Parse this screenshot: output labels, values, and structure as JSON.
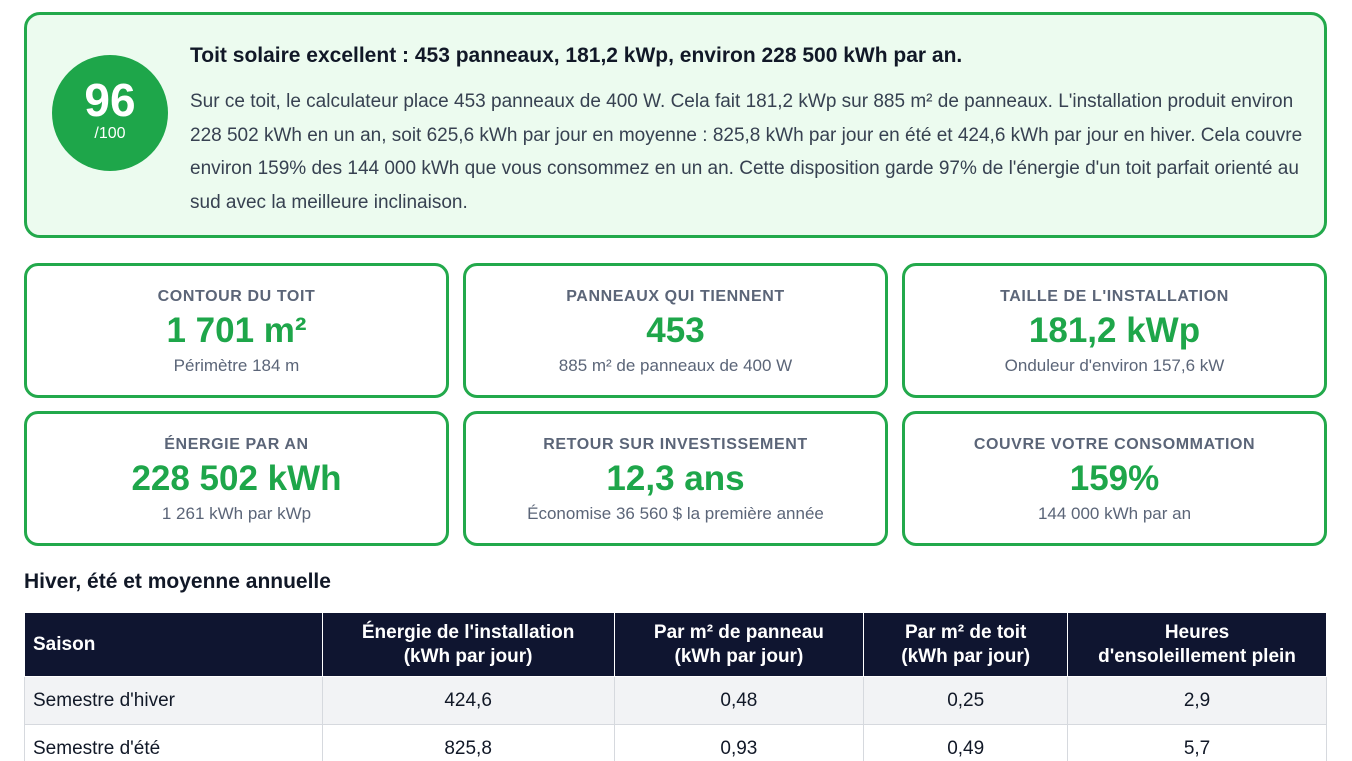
{
  "summary": {
    "score": "96",
    "score_max": "/100",
    "headline": "Toit solaire excellent : 453 panneaux, 181,2 kWp, environ 228 500 kWh par an.",
    "description": "Sur ce toit, le calculateur place 453 panneaux de 400 W. Cela fait 181,2 kWp sur 885 m² de panneaux. L'installation produit environ 228 502 kWh en un an, soit 625,6 kWh par jour en moyenne : 825,8 kWh par jour en été et 424,6 kWh par jour en hiver. Cela couvre environ 159% des 144 000 kWh que vous consommez en un an. Cette disposition garde 97% de l'énergie d'un toit parfait orienté au sud avec la meilleure inclinaison."
  },
  "cards": [
    {
      "label": "CONTOUR DU TOIT",
      "value": "1 701 m²",
      "sub": "Périmètre 184 m"
    },
    {
      "label": "PANNEAUX QUI TIENNENT",
      "value": "453",
      "sub": "885 m² de panneaux de 400 W"
    },
    {
      "label": "TAILLE DE L'INSTALLATION",
      "value": "181,2 kWp",
      "sub": "Onduleur d'environ 157,6 kW"
    },
    {
      "label": "ÉNERGIE PAR AN",
      "value": "228 502 kWh",
      "sub": "1 261 kWh par kWp"
    },
    {
      "label": "RETOUR SUR INVESTISSEMENT",
      "value": "12,3 ans",
      "sub": "Économise 36 560 $ la première année"
    },
    {
      "label": "COUVRE VOTRE CONSOMMATION",
      "value": "159%",
      "sub": "144 000 kWh par an"
    }
  ],
  "season_table": {
    "title": "Hiver, été et moyenne annuelle",
    "headers": [
      [
        "Saison"
      ],
      [
        "Énergie de l'installation",
        "(kWh par jour)"
      ],
      [
        "Par m² de panneau",
        "(kWh par jour)"
      ],
      [
        "Par m² de toit",
        "(kWh par jour)"
      ],
      [
        "Heures",
        "d'ensoleillement plein"
      ]
    ],
    "rows": [
      [
        "Semestre d'hiver",
        "424,6",
        "0,48",
        "0,25",
        "2,9"
      ],
      [
        "Semestre d'été",
        "825,8",
        "0,93",
        "0,49",
        "5,7"
      ]
    ]
  }
}
